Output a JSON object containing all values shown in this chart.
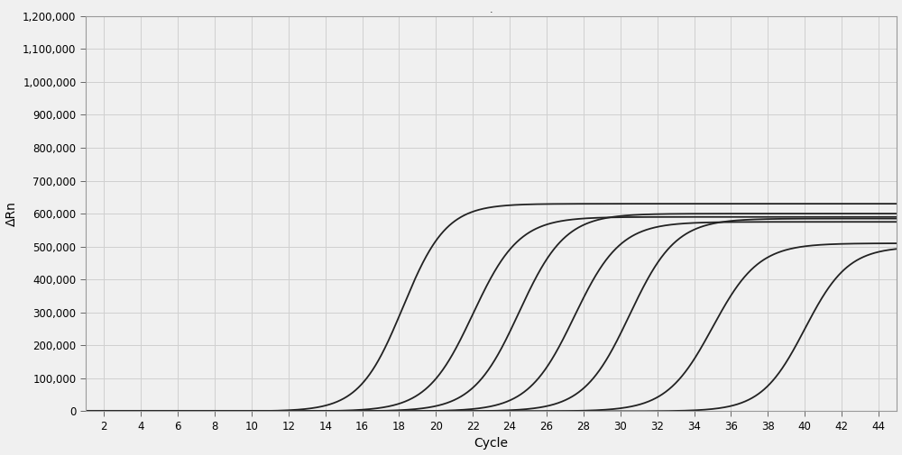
{
  "title": ".",
  "xlabel": "Cycle",
  "ylabel": "ΔRn",
  "xlim": [
    1,
    45
  ],
  "ylim": [
    0,
    1200000
  ],
  "xticks": [
    2,
    4,
    6,
    8,
    10,
    12,
    14,
    16,
    18,
    20,
    22,
    24,
    26,
    28,
    30,
    32,
    34,
    36,
    38,
    40,
    42,
    44
  ],
  "yticks": [
    0,
    100000,
    200000,
    300000,
    400000,
    500000,
    600000,
    700000,
    800000,
    900000,
    1000000,
    1100000,
    1200000
  ],
  "ytick_labels": [
    "0",
    "100,000",
    "200,000",
    "300,000",
    "400,000",
    "500,000",
    "600,000",
    "700,000",
    "800,000",
    "900,000",
    "1,000,000",
    "1,100,000",
    "1,200,000"
  ],
  "curves": [
    {
      "ct": 18.2,
      "plateau": 630000,
      "slope": 0.85
    },
    {
      "ct": 22.0,
      "plateau": 590000,
      "slope": 0.8
    },
    {
      "ct": 24.5,
      "plateau": 600000,
      "slope": 0.8
    },
    {
      "ct": 27.5,
      "plateau": 575000,
      "slope": 0.8
    },
    {
      "ct": 30.5,
      "plateau": 585000,
      "slope": 0.8
    },
    {
      "ct": 35.0,
      "plateau": 510000,
      "slope": 0.8
    },
    {
      "ct": 40.0,
      "plateau": 500000,
      "slope": 0.85
    }
  ],
  "line_color": "#222222",
  "line_width": 1.3,
  "background_color": "#f0f0f0",
  "grid_color": "#d0d0d0",
  "title_fontsize": 8,
  "axis_label_fontsize": 10,
  "tick_fontsize": 8.5
}
